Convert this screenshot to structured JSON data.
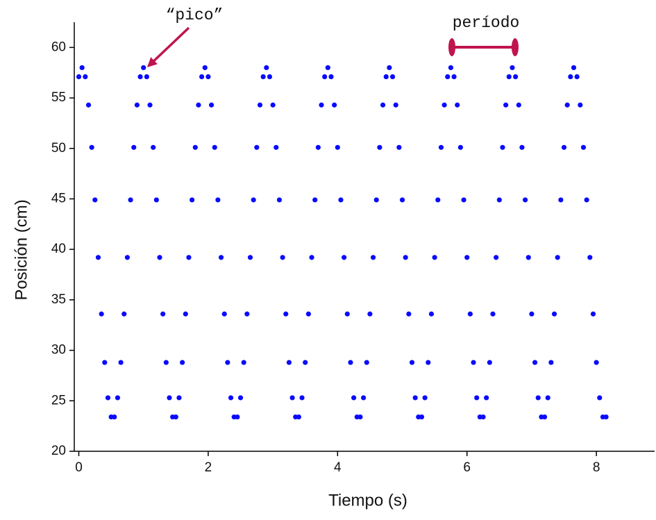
{
  "chart_data": {
    "type": "scatter",
    "x_label": "Tiempo (s)",
    "y_label": "Posición (cm)",
    "annotations": [
      "“pico”",
      "período"
    ],
    "color": "#0a0aff",
    "xlim": [
      -0.07,
      8.9
    ],
    "ylim": [
      20,
      62.5
    ],
    "xticks": [
      0,
      2,
      4,
      6,
      8
    ],
    "yticks": [
      20,
      25,
      30,
      35,
      40,
      45,
      50,
      55,
      60
    ],
    "x": [
      0,
      0.05,
      0.1,
      0.15,
      0.2,
      0.25,
      0.3,
      0.35,
      0.4,
      0.45,
      0.5,
      0.55,
      0.6,
      0.65,
      0.7,
      0.75,
      0.8,
      0.85,
      0.9,
      0.95,
      1,
      1.05,
      1.1,
      1.15,
      1.2,
      1.25,
      1.3,
      1.35,
      1.4,
      1.45,
      1.5,
      1.55,
      1.6,
      1.65,
      1.7,
      1.75,
      1.8,
      1.85,
      1.9,
      1.95,
      2,
      2.05,
      2.1,
      2.15,
      2.2,
      2.25,
      2.3,
      2.35,
      2.4,
      2.45,
      2.5,
      2.55,
      2.6,
      2.65,
      2.7,
      2.75,
      2.8,
      2.85,
      2.9,
      2.95,
      3,
      3.05,
      3.1,
      3.15,
      3.2,
      3.25,
      3.3,
      3.35,
      3.4,
      3.45,
      3.5,
      3.55,
      3.6,
      3.65,
      3.7,
      3.75,
      3.8,
      3.85,
      3.9,
      3.95,
      4,
      4.05,
      4.1,
      4.15,
      4.2,
      4.25,
      4.3,
      4.35,
      4.4,
      4.45,
      4.5,
      4.55,
      4.6,
      4.65,
      4.7,
      4.75,
      4.8,
      4.85,
      4.9,
      4.95,
      5,
      5.05,
      5.1,
      5.15,
      5.2,
      5.25,
      5.3,
      5.35,
      5.4,
      5.45,
      5.5,
      5.55,
      5.6,
      5.65,
      5.7,
      5.75,
      5.8,
      5.85,
      5.9,
      5.95,
      6,
      6.05,
      6.1,
      6.15,
      6.2,
      6.25,
      6.3,
      6.35,
      6.4,
      6.45,
      6.5,
      6.55,
      6.6,
      6.65,
      6.7,
      6.75,
      6.8,
      6.85,
      6.9,
      6.95,
      7,
      7.05,
      7.1,
      7.15,
      7.2,
      7.25,
      7.3,
      7.35,
      7.4,
      7.45,
      7.5,
      7.55,
      7.6,
      7.65,
      7.7,
      7.75,
      7.8,
      7.85,
      7.9,
      7.95,
      8,
      8.05,
      8.1,
      8.15
    ],
    "values": [
      57.1,
      58.0,
      57.1,
      54.3,
      50.1,
      44.9,
      39.2,
      33.6,
      28.8,
      25.3,
      23.4,
      23.4,
      25.3,
      28.8,
      33.6,
      39.2,
      44.9,
      50.1,
      54.3,
      57.1,
      58.0,
      57.1,
      54.3,
      50.1,
      44.9,
      39.2,
      33.6,
      28.8,
      25.3,
      23.4,
      23.4,
      25.3,
      28.8,
      33.6,
      39.2,
      44.9,
      50.1,
      54.3,
      57.1,
      58.0,
      57.1,
      54.3,
      50.1,
      44.9,
      39.2,
      33.6,
      28.8,
      25.3,
      23.4,
      23.4,
      25.3,
      28.8,
      33.6,
      39.2,
      44.9,
      50.1,
      54.3,
      57.1,
      58.0,
      57.1,
      54.3,
      50.1,
      44.9,
      39.2,
      33.6,
      28.8,
      25.3,
      23.4,
      23.4,
      25.3,
      28.8,
      33.6,
      39.2,
      44.9,
      50.1,
      54.3,
      57.1,
      58.0,
      57.1,
      54.3,
      50.1,
      44.9,
      39.2,
      33.6,
      28.8,
      25.3,
      23.4,
      23.4,
      25.3,
      28.8,
      33.6,
      39.2,
      44.9,
      50.1,
      54.3,
      57.1,
      58.0,
      57.1,
      54.3,
      50.1,
      44.9,
      39.2,
      33.6,
      28.8,
      25.3,
      23.4,
      23.4,
      25.3,
      28.8,
      33.6,
      39.2,
      44.9,
      50.1,
      54.3,
      57.1,
      58.0,
      57.1,
      54.3,
      50.1,
      44.9,
      39.2,
      33.6,
      28.8,
      25.3,
      23.4,
      23.4,
      25.3,
      28.8,
      33.6,
      39.2,
      44.9,
      50.1,
      54.3,
      57.1,
      58.0,
      57.1,
      54.3,
      50.1,
      44.9,
      39.2,
      33.6,
      28.8,
      25.3,
      23.4,
      23.4,
      25.3,
      28.8,
      33.6,
      39.2,
      44.9,
      50.1,
      54.3,
      57.1,
      58.0,
      57.1,
      54.3,
      50.1,
      44.9,
      39.2,
      33.6,
      28.8,
      25.3,
      23.4,
      23.4
    ]
  }
}
